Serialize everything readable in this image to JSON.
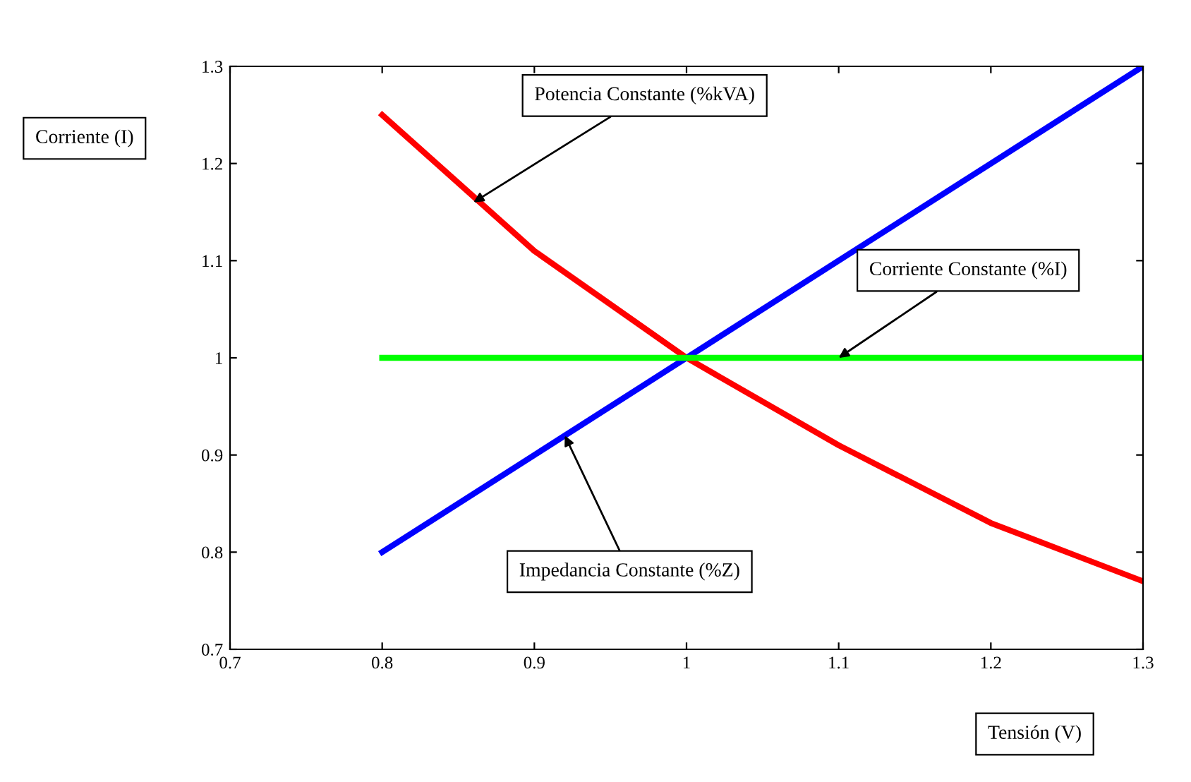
{
  "chart_data": {
    "type": "line",
    "xlabel": "Tensión (V)",
    "ylabel": "Corriente (I)",
    "xlim": [
      0.7,
      1.3
    ],
    "xticks": [
      0.7,
      0.8,
      0.9,
      1,
      1.1,
      1.2,
      1.3
    ],
    "ylim": [
      0.7,
      1.3
    ],
    "yticks": [
      0.7,
      0.8,
      0.9,
      1,
      1.1,
      1.2,
      1.3
    ],
    "grid": false,
    "legend": false,
    "marker": "none",
    "line_style": "solid",
    "x": [
      0.8,
      0.9,
      1.0,
      1.1,
      1.2,
      1.3
    ],
    "series": [
      {
        "color": "#ff0000",
        "values": [
          1.25,
          1.11,
          1.0,
          0.91,
          0.83,
          0.77
        ]
      },
      {
        "color": "#0000ff",
        "values": [
          0.8,
          0.9,
          1.0,
          1.1,
          1.2,
          1.3
        ]
      },
      {
        "color": "#00ff00",
        "values": [
          1.0,
          1.0,
          1.0,
          1.0,
          1.0,
          1.0
        ]
      }
    ],
    "annotations": [
      {
        "text": "Potencia Constante (%kVA)",
        "x": 0.86,
        "y": 1.16
      },
      {
        "text": "Corriente Constante (%I)",
        "x": 1.1,
        "y": 1.0
      },
      {
        "text": "Impedancia Constante (%Z)",
        "x": 0.92,
        "y": 0.92
      }
    ]
  }
}
